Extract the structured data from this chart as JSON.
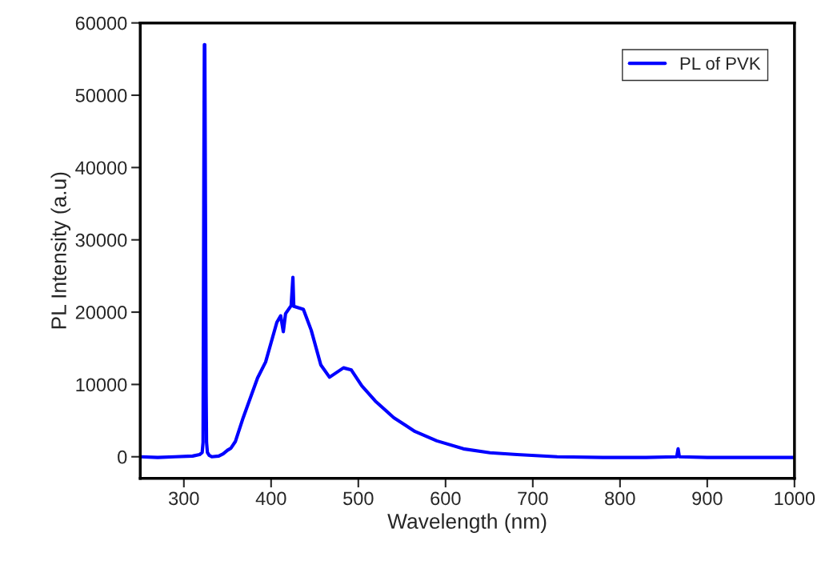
{
  "chart_data": {
    "type": "line",
    "xlabel": "Wavelength (nm)",
    "ylabel": "PL Intensity (a.u)",
    "xlim": [
      250,
      1000
    ],
    "xticks": [
      300,
      400,
      500,
      600,
      700,
      800,
      900,
      1000
    ],
    "ylim": [
      -3000,
      60000
    ],
    "yticks": [
      0,
      10000,
      20000,
      30000,
      40000,
      50000,
      60000
    ],
    "legend": "top right",
    "grid": false,
    "series": [
      {
        "name": "PL of PVK",
        "color": "#0000ff",
        "x": [
          250,
          270,
          290,
          310,
          318,
          321,
          322,
          323,
          323.5,
          324,
          324.5,
          325,
          325.5,
          326,
          327,
          329,
          332,
          340,
          345,
          350,
          354,
          359,
          368,
          384.5,
          393.7,
          406.6,
          411,
          414,
          416.6,
          423,
          425,
          426,
          437,
          446,
          457,
          467,
          483,
          492,
          504,
          519.5,
          540.7,
          565,
          590,
          620.5,
          651,
          682,
          728,
          780,
          830,
          865,
          866.6,
          868,
          900,
          950,
          1000
        ],
        "values": [
          0,
          -100,
          0,
          100,
          300,
          600,
          2000,
          42000,
          57000,
          57000,
          42000,
          26000,
          9000,
          2000,
          600,
          200,
          0,
          100,
          400,
          900,
          1200,
          2100,
          5400,
          10900,
          13100,
          18600,
          19500,
          17300,
          19800,
          20900,
          24800,
          20800,
          20400,
          17500,
          12700,
          11000,
          12300,
          12000,
          9800,
          7700,
          5400,
          3500,
          2200,
          1100,
          550,
          300,
          0,
          -100,
          -100,
          0,
          1100,
          0,
          -100,
          -100,
          -100
        ]
      }
    ]
  }
}
